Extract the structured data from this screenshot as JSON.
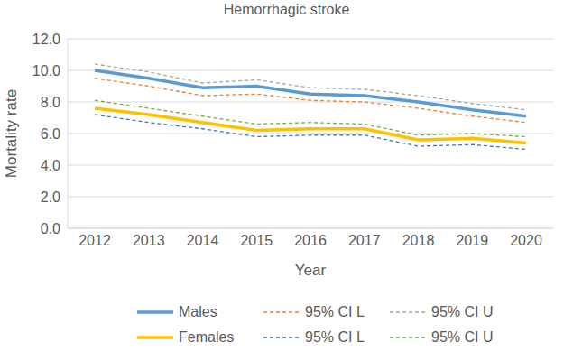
{
  "chart_data": {
    "type": "line",
    "title": "Hemorrhagic stroke",
    "x_label": "Year",
    "y_label": "Mortality rate",
    "x": [
      2012,
      2013,
      2014,
      2015,
      2016,
      2017,
      2018,
      2019,
      2020
    ],
    "ylim": [
      0,
      12
    ],
    "yticks": [
      {
        "value": 0,
        "label": "0.0"
      },
      {
        "value": 2,
        "label": "2.0"
      },
      {
        "value": 4,
        "label": "4.0"
      },
      {
        "value": 6,
        "label": "6.0"
      },
      {
        "value": 8,
        "label": "8.0"
      },
      {
        "value": 10,
        "label": "10.0"
      },
      {
        "value": 12,
        "label": "12.0"
      }
    ],
    "grid": true,
    "legend": "bottom",
    "series": [
      {
        "name": "Males",
        "color": "#5b9bd5",
        "line_style": "solid",
        "values": [
          10.0,
          9.5,
          8.9,
          9.0,
          8.5,
          8.4,
          8.0,
          7.5,
          7.1
        ]
      },
      {
        "name": "95% CI L",
        "color": "#ed7d31",
        "line_style": "dashed",
        "values": [
          9.5,
          9.0,
          8.4,
          8.5,
          8.1,
          8.0,
          7.6,
          7.1,
          6.7
        ]
      },
      {
        "name": "95% CI U",
        "color": "#a5a5a5",
        "line_style": "dashed",
        "values": [
          10.4,
          9.9,
          9.2,
          9.4,
          8.9,
          8.8,
          8.4,
          7.9,
          7.5
        ]
      },
      {
        "name": "Females",
        "color": "#ffc000",
        "line_style": "solid",
        "values": [
          7.6,
          7.2,
          6.7,
          6.2,
          6.3,
          6.3,
          5.6,
          5.7,
          5.4
        ]
      },
      {
        "name": "95% CI L",
        "color": "#4472c4",
        "line_style": "dashed",
        "values": [
          7.2,
          6.7,
          6.3,
          5.8,
          5.9,
          5.9,
          5.2,
          5.3,
          5.0
        ]
      },
      {
        "name": "95% CI U",
        "color": "#70ad47",
        "line_style": "dashed",
        "values": [
          8.1,
          7.6,
          7.1,
          6.6,
          6.7,
          6.6,
          5.9,
          6.0,
          5.8
        ]
      }
    ]
  }
}
